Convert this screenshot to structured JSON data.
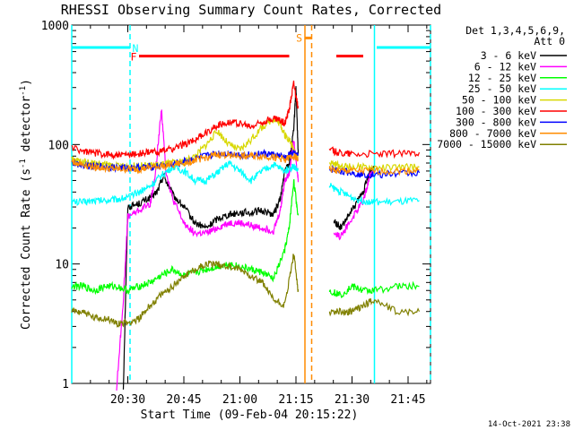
{
  "chart_data": {
    "type": "line",
    "title": "RHESSI Observing Summary Count Rates, Corrected",
    "xlabel": "Start Time (09-Feb-04 20:15:22)",
    "ylabel": "Corrected Count Rate (s",
    "ylabel_sup1": "-1",
    "ylabel_mid": " detector",
    "ylabel_sup2": "-1",
    "ylabel_end": ")",
    "yscale": "log",
    "ylim": [
      1,
      1000
    ],
    "xlim_minutes": [
      20.25,
      21.85
    ],
    "yticks": [
      {
        "value": 1,
        "label": "1"
      },
      {
        "value": 10,
        "label": "10"
      },
      {
        "value": 100,
        "label": "100"
      },
      {
        "value": 1000,
        "label": "1000"
      }
    ],
    "xticks": [
      {
        "value": 20.5,
        "label": "20:30"
      },
      {
        "value": 20.75,
        "label": "20:45"
      },
      {
        "value": 21.0,
        "label": "21:00"
      },
      {
        "value": 21.25,
        "label": "21:15"
      },
      {
        "value": 21.5,
        "label": "21:30"
      },
      {
        "value": 21.75,
        "label": "21:45"
      }
    ],
    "legend_header": [
      "Det 1,3,4,5,6,9,",
      "Att 0"
    ],
    "legend_position": "right",
    "series": [
      {
        "name": "3 - 6 keV",
        "color": "#000000",
        "points": [
          [
            20.48,
            0.9
          ],
          [
            20.5,
            30
          ],
          [
            20.55,
            32
          ],
          [
            20.6,
            36
          ],
          [
            20.63,
            40
          ],
          [
            20.66,
            55
          ],
          [
            20.7,
            38
          ],
          [
            20.75,
            30
          ],
          [
            20.8,
            22
          ],
          [
            20.85,
            20
          ],
          [
            20.9,
            24
          ],
          [
            20.95,
            26
          ],
          [
            21.0,
            27
          ],
          [
            21.05,
            27
          ],
          [
            21.1,
            28
          ],
          [
            21.15,
            26
          ],
          [
            21.18,
            35
          ],
          [
            21.2,
            60
          ],
          [
            21.22,
            70
          ],
          [
            21.24,
            130
          ],
          [
            21.25,
            300
          ],
          [
            21.26,
            80
          ],
          [
            21.42,
            23
          ],
          [
            21.45,
            20
          ],
          [
            21.5,
            28
          ],
          [
            21.55,
            40
          ],
          [
            21.58,
            60
          ],
          [
            21.6,
            66
          ]
        ]
      },
      {
        "name": "6 - 12 keV",
        "color": "#ff00ff",
        "points": [
          [
            20.45,
            0.9
          ],
          [
            20.48,
            5
          ],
          [
            20.5,
            25
          ],
          [
            20.55,
            28
          ],
          [
            20.6,
            32
          ],
          [
            20.62,
            50
          ],
          [
            20.65,
            200
          ],
          [
            20.67,
            60
          ],
          [
            20.7,
            35
          ],
          [
            20.75,
            22
          ],
          [
            20.8,
            18
          ],
          [
            20.85,
            18
          ],
          [
            20.9,
            20
          ],
          [
            20.95,
            22
          ],
          [
            21.0,
            22
          ],
          [
            21.05,
            21
          ],
          [
            21.1,
            20
          ],
          [
            21.15,
            19
          ],
          [
            21.18,
            28
          ],
          [
            21.2,
            50
          ],
          [
            21.22,
            58
          ],
          [
            21.24,
            110
          ],
          [
            21.26,
            50
          ],
          [
            21.42,
            18
          ],
          [
            21.45,
            17
          ],
          [
            21.5,
            24
          ],
          [
            21.55,
            34
          ],
          [
            21.58,
            55
          ],
          [
            21.6,
            60
          ]
        ]
      },
      {
        "name": "12 - 25 keV",
        "color": "#00ff00",
        "points": [
          [
            20.25,
            6.5
          ],
          [
            20.3,
            6.5
          ],
          [
            20.35,
            6
          ],
          [
            20.4,
            6.5
          ],
          [
            20.45,
            6.5
          ],
          [
            20.5,
            6
          ],
          [
            20.55,
            6.5
          ],
          [
            20.6,
            7
          ],
          [
            20.65,
            8
          ],
          [
            20.7,
            9
          ],
          [
            20.75,
            8
          ],
          [
            20.8,
            8.5
          ],
          [
            20.85,
            9
          ],
          [
            20.9,
            9.5
          ],
          [
            20.95,
            10
          ],
          [
            21.0,
            9.5
          ],
          [
            21.05,
            9
          ],
          [
            21.1,
            8.5
          ],
          [
            21.15,
            7.5
          ],
          [
            21.2,
            13
          ],
          [
            21.22,
            20
          ],
          [
            21.24,
            50
          ],
          [
            21.26,
            25
          ],
          [
            21.4,
            6
          ],
          [
            21.45,
            5.5
          ],
          [
            21.5,
            6.5
          ],
          [
            21.55,
            6
          ],
          [
            21.6,
            6
          ],
          [
            21.7,
            6.5
          ],
          [
            21.8,
            6.5
          ]
        ]
      },
      {
        "name": "25 - 50 keV",
        "color": "#00ffff",
        "points": [
          [
            20.25,
            33
          ],
          [
            20.3,
            33
          ],
          [
            20.35,
            34
          ],
          [
            20.4,
            34
          ],
          [
            20.45,
            35
          ],
          [
            20.5,
            36
          ],
          [
            20.55,
            40
          ],
          [
            20.6,
            45
          ],
          [
            20.65,
            55
          ],
          [
            20.7,
            65
          ],
          [
            20.75,
            60
          ],
          [
            20.8,
            50
          ],
          [
            20.85,
            50
          ],
          [
            20.9,
            58
          ],
          [
            20.95,
            70
          ],
          [
            21.0,
            60
          ],
          [
            21.05,
            50
          ],
          [
            21.1,
            60
          ],
          [
            21.15,
            68
          ],
          [
            21.2,
            60
          ],
          [
            21.24,
            66
          ],
          [
            21.26,
            60
          ],
          [
            21.4,
            45
          ],
          [
            21.45,
            40
          ],
          [
            21.5,
            36
          ],
          [
            21.55,
            34
          ],
          [
            21.6,
            33
          ],
          [
            21.7,
            33
          ],
          [
            21.8,
            34
          ]
        ]
      },
      {
        "name": "50 - 100 keV",
        "color": "#d8d800",
        "points": [
          [
            20.25,
            75
          ],
          [
            20.3,
            72
          ],
          [
            20.35,
            70
          ],
          [
            20.4,
            68
          ],
          [
            20.45,
            66
          ],
          [
            20.5,
            66
          ],
          [
            20.55,
            66
          ],
          [
            20.6,
            67
          ],
          [
            20.65,
            68
          ],
          [
            20.7,
            70
          ],
          [
            20.75,
            72
          ],
          [
            20.8,
            80
          ],
          [
            20.85,
            100
          ],
          [
            20.9,
            130
          ],
          [
            20.95,
            100
          ],
          [
            21.0,
            90
          ],
          [
            21.05,
            110
          ],
          [
            21.1,
            140
          ],
          [
            21.15,
            165
          ],
          [
            21.18,
            150
          ],
          [
            21.2,
            120
          ],
          [
            21.22,
            110
          ],
          [
            21.24,
            90
          ],
          [
            21.26,
            80
          ],
          [
            21.4,
            70
          ],
          [
            21.45,
            66
          ],
          [
            21.5,
            65
          ],
          [
            21.6,
            64
          ],
          [
            21.7,
            64
          ],
          [
            21.8,
            65
          ]
        ]
      },
      {
        "name": "100 - 300 keV",
        "color": "#ff0000",
        "points": [
          [
            20.25,
            95
          ],
          [
            20.3,
            88
          ],
          [
            20.35,
            85
          ],
          [
            20.4,
            83
          ],
          [
            20.45,
            82
          ],
          [
            20.5,
            82
          ],
          [
            20.55,
            84
          ],
          [
            20.6,
            86
          ],
          [
            20.65,
            88
          ],
          [
            20.7,
            92
          ],
          [
            20.75,
            100
          ],
          [
            20.8,
            110
          ],
          [
            20.85,
            125
          ],
          [
            20.9,
            145
          ],
          [
            20.95,
            155
          ],
          [
            21.0,
            150
          ],
          [
            21.05,
            140
          ],
          [
            21.1,
            155
          ],
          [
            21.15,
            165
          ],
          [
            21.18,
            160
          ],
          [
            21.2,
            150
          ],
          [
            21.22,
            200
          ],
          [
            21.24,
            330
          ],
          [
            21.26,
            200
          ],
          [
            21.4,
            90
          ],
          [
            21.45,
            85
          ],
          [
            21.5,
            84
          ],
          [
            21.6,
            83
          ],
          [
            21.7,
            84
          ],
          [
            21.8,
            86
          ]
        ]
      },
      {
        "name": "300 - 800 keV",
        "color": "#0000ff",
        "points": [
          [
            20.25,
            70
          ],
          [
            20.3,
            68
          ],
          [
            20.35,
            66
          ],
          [
            20.4,
            65
          ],
          [
            20.45,
            64
          ],
          [
            20.5,
            64
          ],
          [
            20.55,
            64
          ],
          [
            20.6,
            65
          ],
          [
            20.65,
            66
          ],
          [
            20.7,
            68
          ],
          [
            20.75,
            72
          ],
          [
            20.8,
            76
          ],
          [
            20.85,
            80
          ],
          [
            20.9,
            84
          ],
          [
            20.95,
            84
          ],
          [
            21.0,
            82
          ],
          [
            21.05,
            82
          ],
          [
            21.1,
            84
          ],
          [
            21.15,
            82
          ],
          [
            21.2,
            78
          ],
          [
            21.24,
            85
          ],
          [
            21.26,
            80
          ],
          [
            21.4,
            62
          ],
          [
            21.45,
            60
          ],
          [
            21.5,
            58
          ],
          [
            21.55,
            56
          ],
          [
            21.6,
            56
          ],
          [
            21.7,
            57
          ],
          [
            21.8,
            58
          ]
        ]
      },
      {
        "name": "800 - 7000 keV",
        "color": "#ff8c00",
        "points": [
          [
            20.25,
            72
          ],
          [
            20.3,
            68
          ],
          [
            20.35,
            65
          ],
          [
            20.4,
            63
          ],
          [
            20.45,
            62
          ],
          [
            20.5,
            62
          ],
          [
            20.55,
            62
          ],
          [
            20.6,
            64
          ],
          [
            20.65,
            66
          ],
          [
            20.7,
            68
          ],
          [
            20.75,
            70
          ],
          [
            20.8,
            74
          ],
          [
            20.85,
            78
          ],
          [
            20.9,
            82
          ],
          [
            20.95,
            82
          ],
          [
            21.0,
            80
          ],
          [
            21.05,
            80
          ],
          [
            21.1,
            80
          ],
          [
            21.15,
            78
          ],
          [
            21.2,
            75
          ],
          [
            21.24,
            80
          ],
          [
            21.26,
            75
          ],
          [
            21.4,
            62
          ],
          [
            21.45,
            60
          ],
          [
            21.5,
            60
          ],
          [
            21.6,
            60
          ],
          [
            21.7,
            60
          ],
          [
            21.8,
            61
          ]
        ]
      },
      {
        "name": "7000 - 15000 keV",
        "color": "#808000",
        "points": [
          [
            20.25,
            4
          ],
          [
            20.3,
            4
          ],
          [
            20.35,
            3.5
          ],
          [
            20.4,
            3.5
          ],
          [
            20.45,
            3.2
          ],
          [
            20.5,
            3.2
          ],
          [
            20.55,
            3.5
          ],
          [
            20.6,
            4.5
          ],
          [
            20.65,
            5.5
          ],
          [
            20.7,
            6.5
          ],
          [
            20.75,
            8
          ],
          [
            20.8,
            9
          ],
          [
            20.85,
            10
          ],
          [
            20.9,
            10
          ],
          [
            20.95,
            9.5
          ],
          [
            21.0,
            9
          ],
          [
            21.05,
            8
          ],
          [
            21.1,
            7
          ],
          [
            21.15,
            5
          ],
          [
            21.2,
            4.5
          ],
          [
            21.24,
            12
          ],
          [
            21.26,
            6
          ],
          [
            21.4,
            4
          ],
          [
            21.45,
            4
          ],
          [
            21.5,
            4
          ],
          [
            21.55,
            4.5
          ],
          [
            21.6,
            5
          ],
          [
            21.7,
            4
          ],
          [
            21.8,
            4
          ]
        ]
      }
    ],
    "bar_annotations": [
      {
        "label": "F",
        "color": "#ff0000",
        "from": 20.55,
        "to": 21.22,
        "value": 550
      },
      {
        "label": "",
        "color": "#ff0000",
        "from": 21.43,
        "to": 21.55,
        "value": 550
      },
      {
        "label": "N",
        "color": "#00ffff",
        "from": 20.25,
        "to": 20.51,
        "value": 650
      },
      {
        "label": "",
        "color": "#00ffff",
        "from": 21.61,
        "to": 21.85,
        "value": 650
      },
      {
        "label": "S",
        "color": "#ff8c00",
        "from": 21.29,
        "to": 21.32,
        "value": 780
      }
    ],
    "vertical_lines": [
      {
        "x": 20.25,
        "color": "#00ffff",
        "style": "solid"
      },
      {
        "x": 20.51,
        "color": "#00ffff",
        "style": "dashed"
      },
      {
        "x": 21.29,
        "color": "#ff8c00",
        "style": "solid"
      },
      {
        "x": 21.32,
        "color": "#ff8c00",
        "style": "dashed"
      },
      {
        "x": 21.6,
        "color": "#00ffff",
        "style": "solid"
      },
      {
        "x": 21.85,
        "color": "#00ffff",
        "style": "dashed"
      }
    ],
    "footer": "14-Oct-2021 23:38"
  }
}
